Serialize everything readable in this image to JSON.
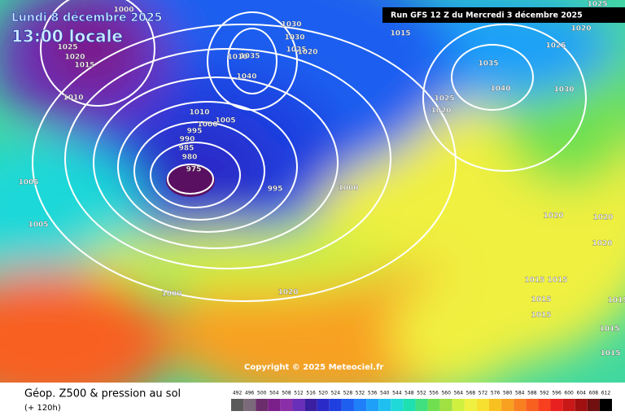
{
  "header": {
    "title": "Lundi 8 décembre 2025",
    "time": "13:00 locale",
    "run": "Run GFS 12 Z du Mercredi 3 décembre 2025"
  },
  "copyright": "Copyright © 2025 Meteociel.fr",
  "footer": {
    "label": "Géop. Z500 & pression au sol",
    "lead": "(+ 120h)"
  },
  "scale": {
    "labels": [
      492,
      496,
      500,
      504,
      508,
      512,
      516,
      520,
      524,
      528,
      532,
      536,
      540,
      544,
      548,
      552,
      556,
      560,
      564,
      568,
      572,
      576,
      580,
      584,
      588,
      592,
      596,
      600,
      604,
      608,
      612
    ],
    "colors": [
      "#5a5a5a",
      "#7a6a7a",
      "#6b2d6b",
      "#7b1f8a",
      "#8b2fa8",
      "#6a2fb8",
      "#3a1fa0",
      "#2a2ac8",
      "#1f3fe0",
      "#1f5ff0",
      "#1f7ff8",
      "#1fa0f8",
      "#1fc0f0",
      "#1fd8d8",
      "#1fe0b0",
      "#40e080",
      "#70e050",
      "#a0e040",
      "#d0f040",
      "#f0f040",
      "#f8e030",
      "#f8c020",
      "#f8a020",
      "#f88020",
      "#f86020",
      "#f84020",
      "#e82020",
      "#c81818",
      "#a01010",
      "#701010",
      "#000000"
    ]
  },
  "isobar_labels": [
    1000,
    1025,
    1020,
    1015,
    1010,
    1030,
    1030,
    1025,
    1020,
    1035,
    1010,
    1040,
    1010,
    1005,
    1000,
    995,
    990,
    985,
    980,
    975,
    995,
    1000,
    1005,
    1005,
    1000,
    1020,
    1035,
    1040,
    1030,
    1025,
    1020,
    1025,
    1015,
    1025,
    1020,
    1020,
    1020,
    1020,
    1015,
    1015,
    1015,
    1015,
    1015,
    1015,
    1015
  ]
}
